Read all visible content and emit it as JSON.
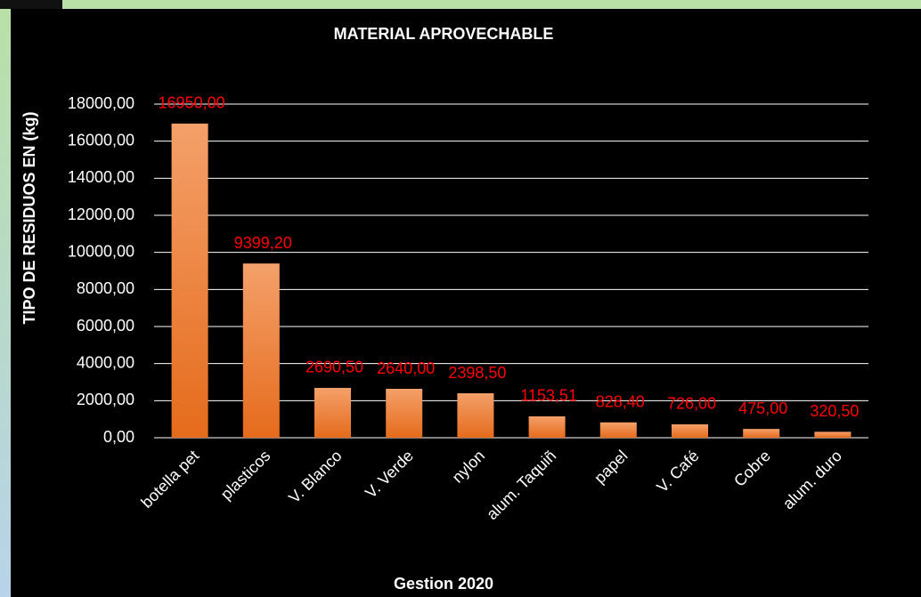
{
  "chart_data": {
    "type": "bar",
    "title": "MATERIAL APROVECHABLE",
    "x_label": "Gestion 2020",
    "y_label": "TIPO DE RESIDUOS EN (kg)",
    "categories": [
      "botella pet",
      "plasticos",
      "V. Blanco",
      "V. Verde",
      "nylon",
      "alum. Taquiñ",
      "papel",
      "V. Café",
      "Cobre",
      "alum. duro"
    ],
    "values": [
      16950,
      9399.2,
      2690.5,
      2640,
      2398.5,
      1153.51,
      828.4,
      726,
      475,
      320.5
    ],
    "value_labels": [
      "16950,00",
      "9399,20",
      "2690,50",
      "2640,00",
      "2398,50",
      "1153,51",
      "828,40",
      "726,00",
      "475,00",
      "320,50"
    ],
    "color": "#ee7b2e",
    "value_label_color": "#ff0000",
    "ylim": [
      0,
      18000
    ],
    "yticks": [
      {
        "value": 0,
        "label": "0,00"
      },
      {
        "value": 2000,
        "label": "2000,00"
      },
      {
        "value": 4000,
        "label": "4000,00"
      },
      {
        "value": 6000,
        "label": "6000,00"
      },
      {
        "value": 8000,
        "label": "8000,00"
      },
      {
        "value": 10000,
        "label": "10000,00"
      },
      {
        "value": 12000,
        "label": "12000,00"
      },
      {
        "value": 14000,
        "label": "14000,00"
      },
      {
        "value": 16000,
        "label": "16000,00"
      },
      {
        "value": 18000,
        "label": "18000,00"
      }
    ],
    "grid": true
  }
}
